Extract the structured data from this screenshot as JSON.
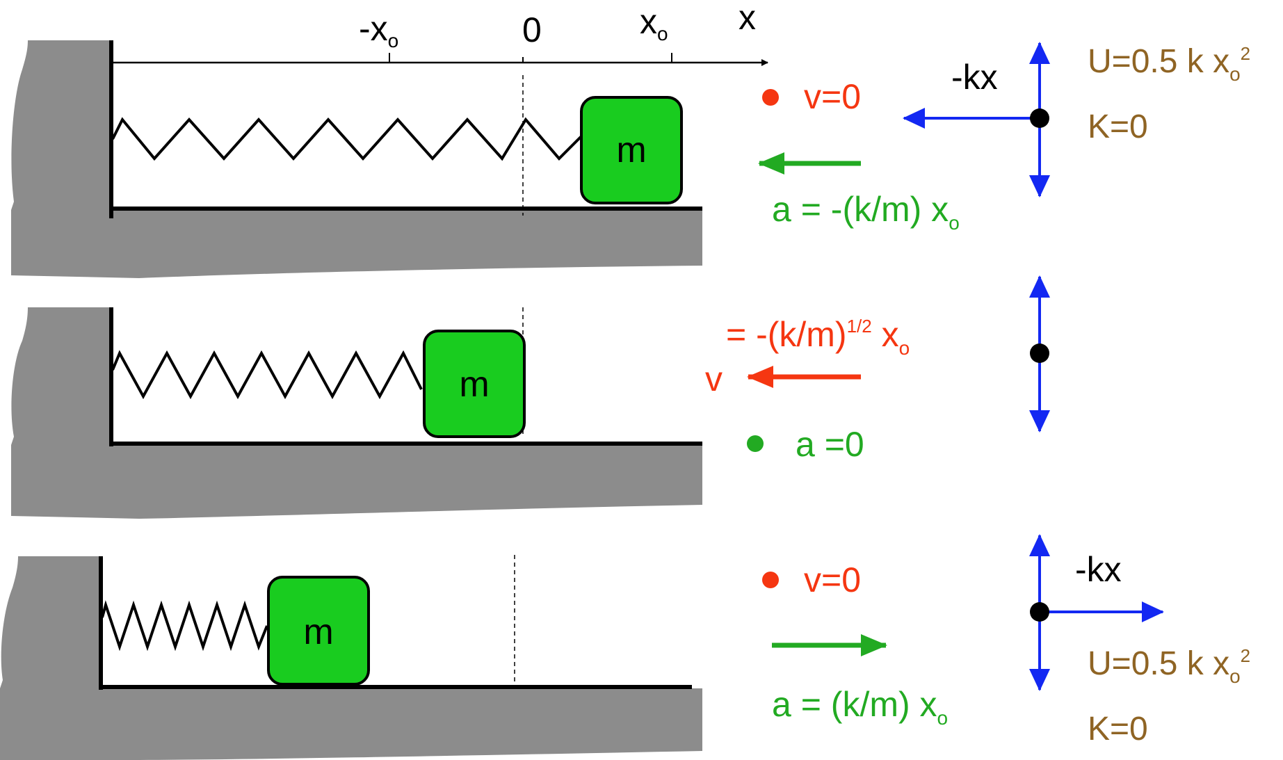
{
  "colors": {
    "wall": "#8c8c8c",
    "mass": "#19cc1f",
    "accel": "#22aa22",
    "velocity": "#f53611",
    "force": "#1328f2",
    "energy": "#8f6424",
    "ink": "#000000"
  },
  "axis": {
    "neg_x0_main": "-x",
    "neg_x0_sub": "o",
    "zero": "0",
    "x0_main": "x",
    "x0_sub": "o",
    "x_label": "x"
  },
  "mass_label": "m",
  "panel1": {
    "velocity": "v=0",
    "accel_main": "a = -(k/m) x",
    "accel_sub": "o",
    "force": "-kx",
    "energy_U_main": "U=0.5 k x",
    "energy_U_sub": "o",
    "energy_U_sup": "2",
    "energy_K": "K=0"
  },
  "panel2": {
    "velocity_eq_main": "= -(k/m)",
    "velocity_eq_sup": "1/2",
    "velocity_eq_tail": " x",
    "velocity_eq_sub": "o",
    "velocity_symbol": "v",
    "accel": "a =0"
  },
  "panel3": {
    "velocity": "v=0",
    "accel_main": "a = (k/m) x",
    "accel_sub": "o",
    "force": "-kx",
    "energy_U_main": "U=0.5 k x",
    "energy_U_sub": "o",
    "energy_U_sup": "2",
    "energy_K": "K=0"
  }
}
